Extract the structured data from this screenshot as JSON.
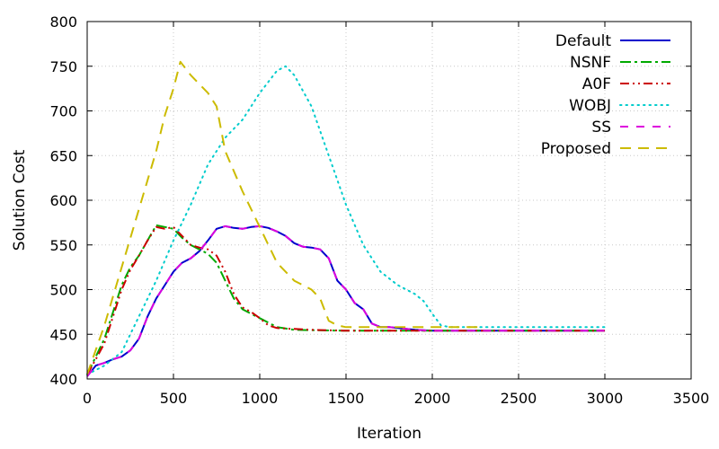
{
  "chart_data": {
    "type": "line",
    "title": "",
    "xlabel": "Iteration",
    "ylabel": "Solution Cost",
    "xlim": [
      0,
      3500
    ],
    "ylim": [
      400,
      800
    ],
    "xticks": [
      0,
      500,
      1000,
      1500,
      2000,
      2500,
      3000,
      3500
    ],
    "yticks": [
      400,
      450,
      500,
      550,
      600,
      650,
      700,
      750,
      800
    ],
    "grid": true,
    "legend_position": "top-right",
    "series": [
      {
        "name": "Default",
        "color": "#0000cc",
        "dash": "solid",
        "x": [
          0,
          50,
          100,
          150,
          200,
          250,
          300,
          350,
          400,
          450,
          500,
          550,
          600,
          650,
          700,
          750,
          800,
          850,
          900,
          950,
          1000,
          1050,
          1100,
          1150,
          1200,
          1250,
          1300,
          1350,
          1400,
          1450,
          1500,
          1550,
          1600,
          1650,
          1700,
          1750,
          1800,
          1850,
          1900,
          2000,
          2200,
          2500,
          3000
        ],
        "y": [
          403,
          415,
          418,
          422,
          425,
          432,
          445,
          470,
          490,
          505,
          520,
          530,
          535,
          543,
          555,
          568,
          571,
          569,
          568,
          570,
          571,
          569,
          565,
          560,
          552,
          548,
          547,
          545,
          535,
          510,
          500,
          485,
          478,
          462,
          458,
          458,
          457,
          456,
          455,
          454,
          454,
          454,
          454
        ]
      },
      {
        "name": "NSNF",
        "color": "#00aa00",
        "dash": "dashdot",
        "x": [
          0,
          50,
          100,
          150,
          200,
          250,
          300,
          350,
          400,
          450,
          500,
          550,
          600,
          650,
          700,
          750,
          800,
          850,
          900,
          1000,
          1100,
          1200,
          1500,
          2000,
          3000
        ],
        "y": [
          405,
          425,
          445,
          475,
          505,
          525,
          538,
          555,
          572,
          570,
          568,
          558,
          550,
          545,
          540,
          530,
          510,
          490,
          478,
          468,
          458,
          455,
          454,
          454,
          454
        ]
      },
      {
        "name": "A0F",
        "color": "#cc0000",
        "dash": "dashdotdot",
        "x": [
          0,
          50,
          100,
          150,
          200,
          250,
          300,
          350,
          400,
          450,
          500,
          550,
          600,
          650,
          700,
          750,
          800,
          850,
          900,
          950,
          1000,
          1050,
          1100,
          1200,
          1300,
          1500,
          2000,
          3000
        ],
        "y": [
          405,
          422,
          440,
          470,
          500,
          522,
          538,
          555,
          570,
          568,
          570,
          560,
          550,
          547,
          545,
          538,
          520,
          495,
          480,
          475,
          468,
          460,
          457,
          456,
          455,
          454,
          454,
          454
        ]
      },
      {
        "name": "WOBJ",
        "color": "#00cccc",
        "dash": "dotted",
        "x": [
          0,
          100,
          200,
          300,
          400,
          500,
          600,
          700,
          800,
          900,
          1000,
          1100,
          1150,
          1200,
          1300,
          1400,
          1500,
          1600,
          1700,
          1800,
          1900,
          1950,
          2000,
          2050,
          2100,
          2500,
          3000
        ],
        "y": [
          405,
          415,
          430,
          470,
          510,
          555,
          595,
          640,
          670,
          690,
          720,
          745,
          750,
          740,
          705,
          650,
          595,
          550,
          520,
          505,
          495,
          487,
          473,
          460,
          458,
          458,
          458
        ]
      },
      {
        "name": "SS",
        "color": "#dd00dd",
        "dash": "dashed",
        "x": [
          0,
          50,
          100,
          150,
          200,
          250,
          300,
          350,
          400,
          450,
          500,
          550,
          600,
          650,
          700,
          750,
          800,
          850,
          900,
          950,
          1000,
          1050,
          1100,
          1150,
          1200,
          1250,
          1300,
          1350,
          1400,
          1450,
          1500,
          1550,
          1600,
          1650,
          1700,
          1750,
          1800,
          1850,
          1900,
          2000,
          2200,
          2500,
          3000
        ],
        "y": [
          403,
          415,
          418,
          422,
          425,
          432,
          445,
          470,
          490,
          505,
          520,
          530,
          535,
          543,
          555,
          568,
          571,
          569,
          568,
          570,
          571,
          569,
          565,
          560,
          552,
          548,
          547,
          545,
          535,
          510,
          500,
          485,
          478,
          462,
          458,
          458,
          457,
          456,
          455,
          454,
          454,
          454,
          454
        ]
      },
      {
        "name": "Proposed",
        "color": "#ccbb00",
        "dash": "longdash",
        "x": [
          0,
          100,
          200,
          300,
          400,
          450,
          500,
          540,
          600,
          700,
          750,
          800,
          900,
          1000,
          1100,
          1200,
          1250,
          1300,
          1350,
          1400,
          1450,
          1500,
          2000,
          2300
        ],
        "y": [
          405,
          460,
          525,
          590,
          655,
          695,
          725,
          755,
          740,
          720,
          705,
          655,
          610,
          570,
          530,
          510,
          505,
          500,
          490,
          465,
          460,
          458,
          458,
          458
        ]
      }
    ]
  }
}
